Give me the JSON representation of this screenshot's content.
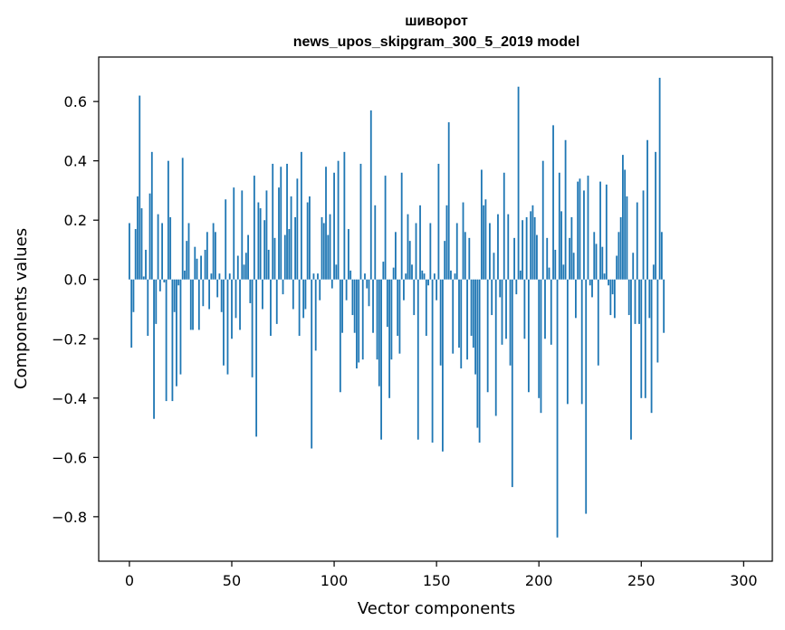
{
  "chart_data": {
    "type": "bar",
    "title_line1": "шиворот",
    "title_line2": "news_upos_skipgram_300_5_2019 model",
    "xlabel": "Vector components",
    "ylabel": "Components values",
    "xlim": [
      -15,
      314
    ],
    "ylim": [
      -0.95,
      0.75
    ],
    "xticks": [
      0,
      50,
      100,
      150,
      200,
      250,
      300
    ],
    "xtick_labels": [
      "0",
      "50",
      "100",
      "150",
      "200",
      "250",
      "300"
    ],
    "yticks": [
      -0.8,
      -0.6,
      -0.4,
      -0.2,
      0.0,
      0.2,
      0.4,
      0.6
    ],
    "ytick_labels": [
      "−0.8",
      "−0.6",
      "−0.4",
      "−0.2",
      "0.0",
      "0.2",
      "0.4",
      "0.6"
    ],
    "bar_color": "#1f77b4",
    "bar_width": 0.8,
    "values": [
      0.19,
      -0.23,
      -0.11,
      0.17,
      0.28,
      0.62,
      0.24,
      0.01,
      0.1,
      -0.19,
      0.29,
      0.43,
      -0.47,
      -0.15,
      0.22,
      -0.04,
      0.19,
      -0.01,
      -0.41,
      0.4,
      0.21,
      -0.41,
      -0.11,
      -0.36,
      -0.02,
      -0.32,
      0.41,
      0.03,
      0.13,
      0.19,
      -0.17,
      -0.17,
      0.11,
      0.07,
      -0.17,
      0.08,
      -0.09,
      0.1,
      0.16,
      -0.1,
      0.02,
      0.19,
      0.16,
      -0.06,
      0.02,
      -0.11,
      -0.29,
      0.27,
      -0.32,
      0.02,
      -0.2,
      0.31,
      -0.13,
      0.08,
      -0.17,
      0.3,
      0.05,
      0.09,
      0.15,
      -0.08,
      -0.33,
      0.35,
      -0.53,
      0.26,
      0.24,
      -0.1,
      0.2,
      0.3,
      0.1,
      -0.19,
      0.39,
      0.14,
      -0.15,
      0.31,
      0.38,
      -0.05,
      0.15,
      0.39,
      0.17,
      0.28,
      -0.1,
      0.21,
      0.34,
      -0.19,
      0.43,
      -0.13,
      -0.1,
      0.26,
      0.28,
      -0.57,
      0.02,
      -0.24,
      0.02,
      -0.07,
      0.21,
      0.19,
      0.38,
      0.15,
      0.22,
      -0.03,
      0.36,
      0.05,
      0.4,
      -0.38,
      -0.18,
      0.43,
      -0.07,
      0.17,
      0.03,
      -0.12,
      -0.18,
      -0.3,
      -0.28,
      0.39,
      -0.27,
      0.02,
      -0.03,
      -0.09,
      0.57,
      -0.18,
      0.25,
      -0.27,
      -0.36,
      -0.54,
      0.06,
      0.35,
      -0.16,
      -0.4,
      -0.27,
      0.04,
      0.16,
      -0.19,
      -0.25,
      0.36,
      -0.07,
      0.02,
      0.22,
      0.13,
      0.05,
      -0.12,
      0.19,
      -0.54,
      0.25,
      0.03,
      0.02,
      -0.19,
      -0.02,
      0.19,
      -0.55,
      0.02,
      -0.07,
      0.39,
      -0.29,
      -0.58,
      0.13,
      0.25,
      0.53,
      0.03,
      -0.25,
      0.02,
      0.19,
      -0.23,
      -0.3,
      0.26,
      0.16,
      -0.27,
      0.14,
      -0.19,
      -0.23,
      -0.32,
      -0.5,
      -0.55,
      0.37,
      0.25,
      0.27,
      -0.38,
      0.19,
      -0.12,
      0.09,
      -0.46,
      0.22,
      -0.06,
      -0.22,
      0.36,
      -0.2,
      0.22,
      -0.29,
      -0.7,
      0.14,
      -0.05,
      0.65,
      0.03,
      0.2,
      -0.2,
      0.21,
      -0.38,
      0.23,
      0.25,
      0.21,
      0.15,
      -0.4,
      -0.45,
      0.4,
      -0.2,
      0.14,
      0.04,
      -0.22,
      0.52,
      0.1,
      -0.87,
      0.36,
      0.23,
      0.05,
      0.47,
      -0.42,
      0.14,
      0.21,
      0.09,
      -0.13,
      0.33,
      0.34,
      -0.42,
      0.3,
      -0.79,
      0.35,
      -0.02,
      -0.06,
      0.16,
      0.12,
      -0.29,
      0.33,
      0.11,
      0.02,
      0.32,
      -0.02,
      -0.12,
      -0.05,
      -0.13,
      0.08,
      0.16,
      0.21,
      0.42,
      0.37,
      0.28,
      -0.12,
      -0.54,
      0.09,
      -0.15,
      0.26,
      -0.15,
      -0.4,
      0.3,
      -0.4,
      0.47,
      -0.13,
      -0.45,
      0.05,
      0.43,
      -0.28,
      0.68,
      0.16,
      -0.18
    ]
  }
}
